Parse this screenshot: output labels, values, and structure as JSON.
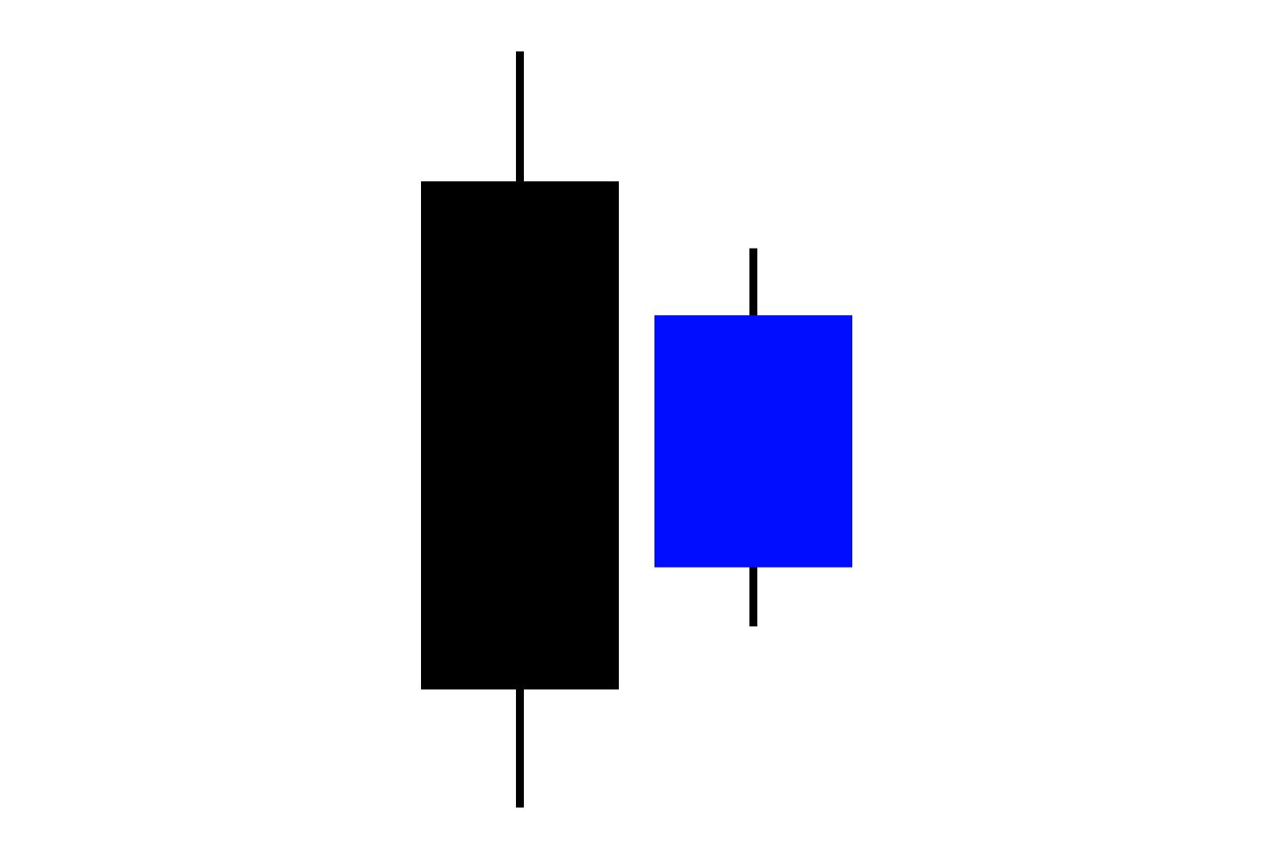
{
  "chart_data": {
    "type": "candlestick",
    "title": "",
    "xlabel": "",
    "ylabel": "",
    "ylim": [
      0,
      100
    ],
    "grid": false,
    "legend": "none",
    "candles": [
      {
        "open": 81.5,
        "high": 98,
        "low": 2,
        "close": 17,
        "color": "#000000"
      },
      {
        "open": 64.5,
        "high": 73,
        "low": 25,
        "close": 32.5,
        "color": "#000dff"
      }
    ]
  }
}
